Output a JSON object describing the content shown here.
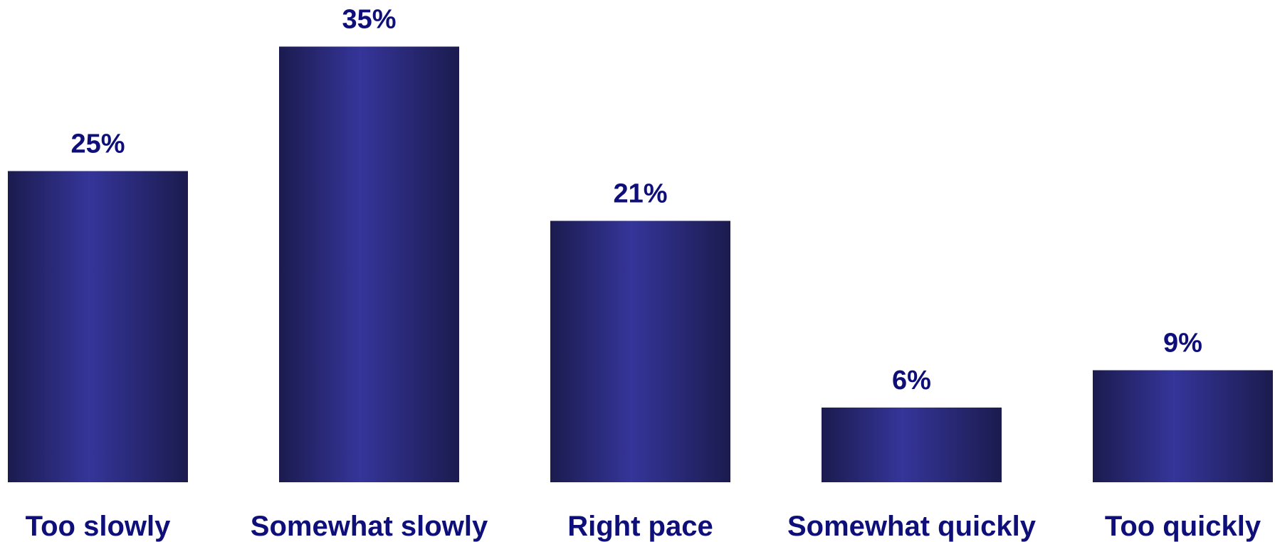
{
  "chart_data": {
    "type": "bar",
    "categories": [
      "Too slowly",
      "Somewhat slowly",
      "Right pace",
      "Somewhat quickly",
      "Too quickly"
    ],
    "values": [
      25,
      35,
      21,
      6,
      9
    ],
    "value_labels": [
      "25%",
      "35%",
      "21%",
      "6%",
      "9%"
    ],
    "unit": "%",
    "title": "",
    "xlabel": "",
    "ylabel": "",
    "grid": false,
    "legend": "none",
    "colors": {
      "bar_edge": "#1b1b4f",
      "bar_center": "#35359a",
      "label": "#0f0f7a"
    }
  }
}
